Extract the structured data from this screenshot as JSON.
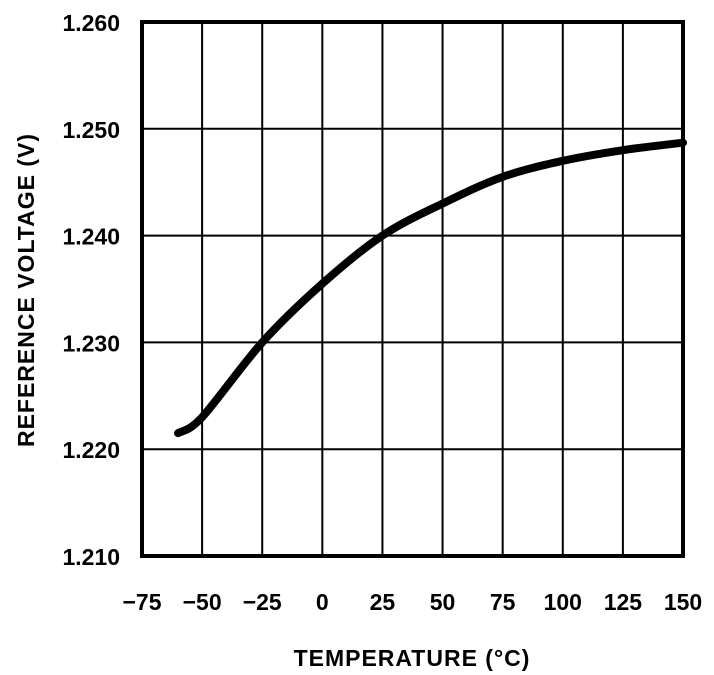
{
  "chart_data": {
    "type": "line",
    "title": "",
    "xlabel": "TEMPERATURE (°C)",
    "ylabel": "REFERENCE VOLTAGE (V)",
    "xlim": [
      -75,
      150
    ],
    "ylim": [
      1.21,
      1.26
    ],
    "x_ticks": [
      -75,
      -50,
      -25,
      0,
      25,
      50,
      75,
      100,
      125,
      150
    ],
    "x_tick_labels": [
      "−75",
      "−50",
      "−25",
      "0",
      "25",
      "50",
      "75",
      "100",
      "125",
      "150"
    ],
    "y_ticks": [
      1.21,
      1.22,
      1.23,
      1.24,
      1.25,
      1.26
    ],
    "y_tick_labels": [
      "1.210",
      "1.220",
      "1.230",
      "1.240",
      "1.250",
      "1.260"
    ],
    "grid": true,
    "legend": null,
    "series": [
      {
        "name": "Reference Voltage",
        "color": "#000000",
        "x": [
          -60,
          -50,
          -25,
          0,
          25,
          50,
          75,
          100,
          125,
          150
        ],
        "values": [
          1.2215,
          1.223,
          1.23,
          1.2355,
          1.24,
          1.243,
          1.2455,
          1.247,
          1.248,
          1.2487
        ]
      }
    ]
  },
  "colors": {
    "background": "#ffffff",
    "ink": "#000000"
  }
}
